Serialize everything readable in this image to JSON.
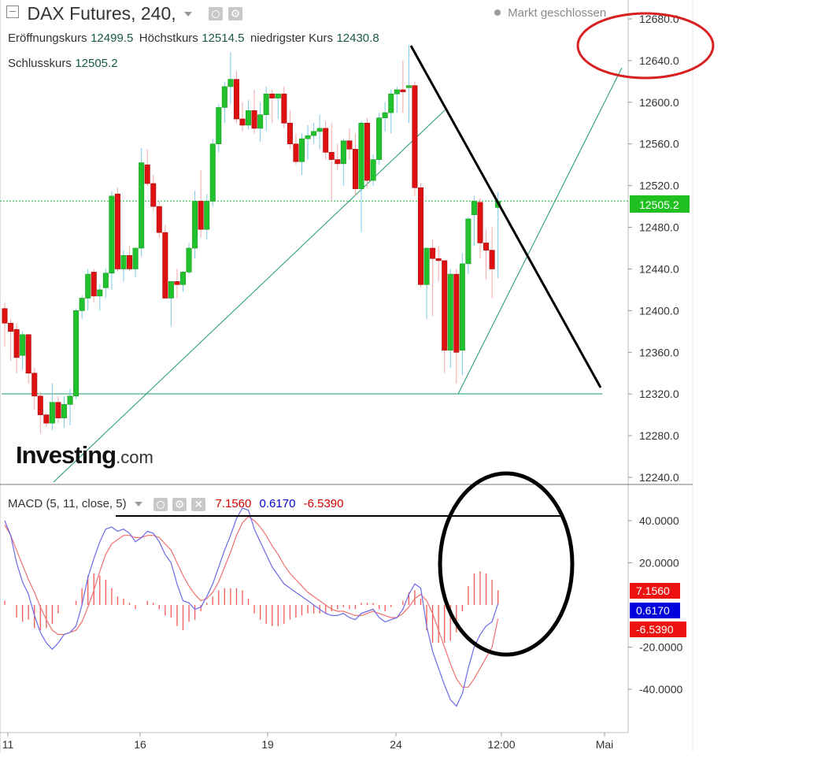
{
  "header": {
    "title": "DAX Futures, 240,",
    "market_status": "Markt geschlossen",
    "ohlc": [
      {
        "label": "Eröffnungskurs",
        "value": "12499.5"
      },
      {
        "label": "Höchstkurs",
        "value": "12514.5"
      },
      {
        "label": "niedrigster Kurs",
        "value": "12430.8"
      }
    ],
    "close": {
      "label": "Schlusskurs",
      "value": "12505.2"
    }
  },
  "watermark": {
    "brand": "Investing",
    "suffix": ".com"
  },
  "macd_legend": {
    "label": "MACD (5, 11, close, 5)",
    "values": [
      "7.1560",
      "0.6170",
      "-6.5390"
    ],
    "colors": [
      "#d40000",
      "#0000cc",
      "#d40000"
    ]
  },
  "colors": {
    "up": "#22c22e",
    "down": "#dd1111",
    "trendline": "#1a9a6a",
    "macd_line": "#6a6ae8",
    "signal_line": "#f07070",
    "hist": "#f05a5a",
    "last_price_tag": "#20c020",
    "annotation_red": "#d92020",
    "annotation_black": "#000000"
  },
  "chart_data": [
    {
      "type": "candlestick",
      "title": "DAX Futures, 240,",
      "ylim": [
        12240,
        12700
      ],
      "y_ticks": [
        "12680.0",
        "12640.0",
        "12600.0",
        "12560.0",
        "12520.0",
        "12480.0",
        "12440.0",
        "12400.0",
        "12360.0",
        "12320.0",
        "12280.0",
        "12240.0"
      ],
      "x_tick_labels": [
        "11",
        "16",
        "19",
        "24",
        "12:00",
        "Mai"
      ],
      "last_price": "12505.2",
      "candles": [
        [
          12402,
          12408,
          12365,
          12388
        ],
        [
          12388,
          12392,
          12352,
          12380
        ],
        [
          12382,
          12388,
          12340,
          12355
        ],
        [
          12357,
          12380,
          12343,
          12377
        ],
        [
          12377,
          12378,
          12330,
          12340
        ],
        [
          12340,
          12345,
          12305,
          12318
        ],
        [
          12318,
          12322,
          12282,
          12300
        ],
        [
          12300,
          12302,
          12288,
          12292
        ],
        [
          12292,
          12330,
          12285,
          12312
        ],
        [
          12312,
          12318,
          12292,
          12297
        ],
        [
          12297,
          12318,
          12288,
          12310
        ],
        [
          12310,
          12325,
          12290,
          12318
        ],
        [
          12318,
          12402,
          12315,
          12400
        ],
        [
          12400,
          12415,
          12392,
          12412
        ],
        [
          12412,
          12440,
          12400,
          12435
        ],
        [
          12437,
          12440,
          12408,
          12414
        ],
        [
          12414,
          12425,
          12400,
          12420
        ],
        [
          12422,
          12440,
          12412,
          12436
        ],
        [
          12436,
          12515,
          12420,
          12510
        ],
        [
          12512,
          12518,
          12438,
          12440
        ],
        [
          12440,
          12458,
          12428,
          12453
        ],
        [
          12453,
          12462,
          12438,
          12440
        ],
        [
          12440,
          12460,
          12432,
          12460
        ],
        [
          12460,
          12556,
          12452,
          12542
        ],
        [
          12540,
          12555,
          12520,
          12522
        ],
        [
          12522,
          12530,
          12495,
          12500
        ],
        [
          12500,
          12505,
          12470,
          12475
        ],
        [
          12475,
          12482,
          12412,
          12412
        ],
        [
          12412,
          12428,
          12385,
          12428
        ],
        [
          12428,
          12440,
          12412,
          12425
        ],
        [
          12425,
          12438,
          12418,
          12437
        ],
        [
          12437,
          12465,
          12435,
          12460
        ],
        [
          12460,
          12515,
          12450,
          12505
        ],
        [
          12505,
          12535,
          12470,
          12478
        ],
        [
          12478,
          12512,
          12468,
          12505
        ],
        [
          12505,
          12565,
          12500,
          12560
        ],
        [
          12560,
          12598,
          12552,
          12595
        ],
        [
          12595,
          12620,
          12580,
          12615
        ],
        [
          12615,
          12648,
          12598,
          12622
        ],
        [
          12622,
          12630,
          12580,
          12584
        ],
        [
          12584,
          12600,
          12572,
          12578
        ],
        [
          12578,
          12602,
          12574,
          12592
        ],
        [
          12592,
          12612,
          12570,
          12575
        ],
        [
          12575,
          12600,
          12562,
          12588
        ],
        [
          12588,
          12615,
          12572,
          12608
        ],
        [
          12608,
          12612,
          12580,
          12604
        ],
        [
          12604,
          12608,
          12584,
          12608
        ],
        [
          12608,
          12615,
          12575,
          12580
        ],
        [
          12580,
          12592,
          12555,
          12560
        ],
        [
          12560,
          12570,
          12540,
          12543
        ],
        [
          12543,
          12570,
          12530,
          12565
        ],
        [
          12565,
          12578,
          12545,
          12568
        ],
        [
          12568,
          12580,
          12560,
          12572
        ],
        [
          12572,
          12588,
          12555,
          12575
        ],
        [
          12575,
          12582,
          12545,
          12552
        ],
        [
          12552,
          12580,
          12505,
          12545
        ],
        [
          12545,
          12560,
          12535,
          12541
        ],
        [
          12541,
          12565,
          12520,
          12563
        ],
        [
          12563,
          12575,
          12545,
          12555
        ],
        [
          12555,
          12570,
          12510,
          12517
        ],
        [
          12517,
          12582,
          12475,
          12580
        ],
        [
          12580,
          12585,
          12518,
          12525
        ],
        [
          12525,
          12550,
          12520,
          12545
        ],
        [
          12545,
          12590,
          12540,
          12585
        ],
        [
          12585,
          12600,
          12572,
          12590
        ],
        [
          12590,
          12612,
          12570,
          12608
        ],
        [
          12608,
          12615,
          12590,
          12612
        ],
        [
          12612,
          12640,
          12590,
          12610
        ],
        [
          12614,
          12655,
          12580,
          12616
        ],
        [
          12616,
          12620,
          12510,
          12518
        ],
        [
          12518,
          12522,
          12422,
          12425
        ],
        [
          12425,
          12458,
          12392,
          12460
        ],
        [
          12460,
          12468,
          12395,
          12450
        ],
        [
          12450,
          12462,
          12428,
          12448
        ],
        [
          12448,
          12448,
          12340,
          12362
        ],
        [
          12362,
          12440,
          12345,
          12435
        ],
        [
          12435,
          12440,
          12330,
          12360
        ],
        [
          12362,
          12455,
          12338,
          12445
        ],
        [
          12445,
          12490,
          12435,
          12488
        ],
        [
          12492,
          12510,
          12462,
          12505
        ],
        [
          12504,
          12508,
          12450,
          12465
        ],
        [
          12465,
          12478,
          12430,
          12458
        ],
        [
          12458,
          12480,
          12412,
          12440
        ],
        [
          12499,
          12514,
          12431,
          12505
        ]
      ]
    },
    {
      "type": "line",
      "title": "MACD (5, 11, close, 5)",
      "ylim": [
        -55,
        50
      ],
      "y_ticks": [
        "40.0000",
        "20.0000",
        "-20.0000",
        "-40.0000"
      ],
      "current_values": [
        "7.1560",
        "0.6170",
        "-6.5390"
      ],
      "series": [
        {
          "values": [
            40,
            33,
            20,
            11,
            5,
            -5,
            -13,
            -18,
            -21,
            -18,
            -14,
            -13,
            -10,
            0,
            13,
            22,
            30,
            36,
            37,
            35,
            36,
            34,
            30,
            32,
            35,
            34,
            30,
            24,
            20,
            10,
            2,
            1,
            -2,
            -1,
            4,
            10,
            18,
            26,
            33,
            41,
            46,
            45,
            36,
            30,
            24,
            18,
            14,
            10,
            8,
            6,
            4,
            2,
            0,
            -2,
            -4,
            -5,
            -5,
            -4,
            -6,
            -7,
            -4,
            -3,
            -2,
            -6,
            -8,
            -7,
            -6,
            -2,
            5,
            10,
            8,
            -10,
            -22,
            -30,
            -38,
            -45,
            -48,
            -42,
            -30,
            -20,
            -14,
            -10,
            -8,
            0.6
          ]
        },
        {
          "values": [
            38,
            33,
            26,
            19,
            12,
            6,
            -1,
            -7,
            -12,
            -14,
            -14,
            -13,
            -12,
            -8,
            -1,
            7,
            16,
            24,
            29,
            31,
            33,
            33,
            32,
            32,
            33,
            33,
            32,
            29,
            26,
            20,
            14,
            9,
            5,
            2,
            3,
            6,
            11,
            18,
            25,
            33,
            39,
            42,
            40,
            37,
            33,
            28,
            24,
            19,
            15,
            12,
            9,
            6,
            4,
            2,
            0,
            -2,
            -3,
            -3,
            -4,
            -5,
            -5,
            -4,
            -3,
            -4,
            -5,
            -6,
            -6,
            -4,
            -1,
            3,
            5,
            2,
            -4,
            -12,
            -20,
            -28,
            -35,
            -39,
            -39,
            -35,
            -30,
            -25,
            -20,
            -6.5
          ]
        },
        {
          "values": [
            2,
            0,
            -6,
            -8,
            -7,
            -11,
            -12,
            -11,
            -9,
            -4,
            0,
            0,
            2,
            8,
            14,
            15,
            14,
            12,
            8,
            4,
            3,
            1,
            -2,
            0,
            2,
            1,
            -2,
            -5,
            -6,
            -10,
            -12,
            -8,
            -7,
            -3,
            1,
            4,
            7,
            8,
            8,
            8,
            7,
            3,
            -4,
            -7,
            -9,
            -10,
            -10,
            -9,
            -7,
            -6,
            -5,
            -4,
            -4,
            -4,
            -4,
            -3,
            -2,
            -1,
            -2,
            -2,
            1,
            1,
            1,
            -2,
            -3,
            -1,
            0,
            2,
            6,
            7,
            3,
            -12,
            -18,
            -18,
            -18,
            -17,
            -13,
            -3,
            9,
            15,
            16,
            15,
            12,
            7
          ]
        }
      ]
    }
  ]
}
